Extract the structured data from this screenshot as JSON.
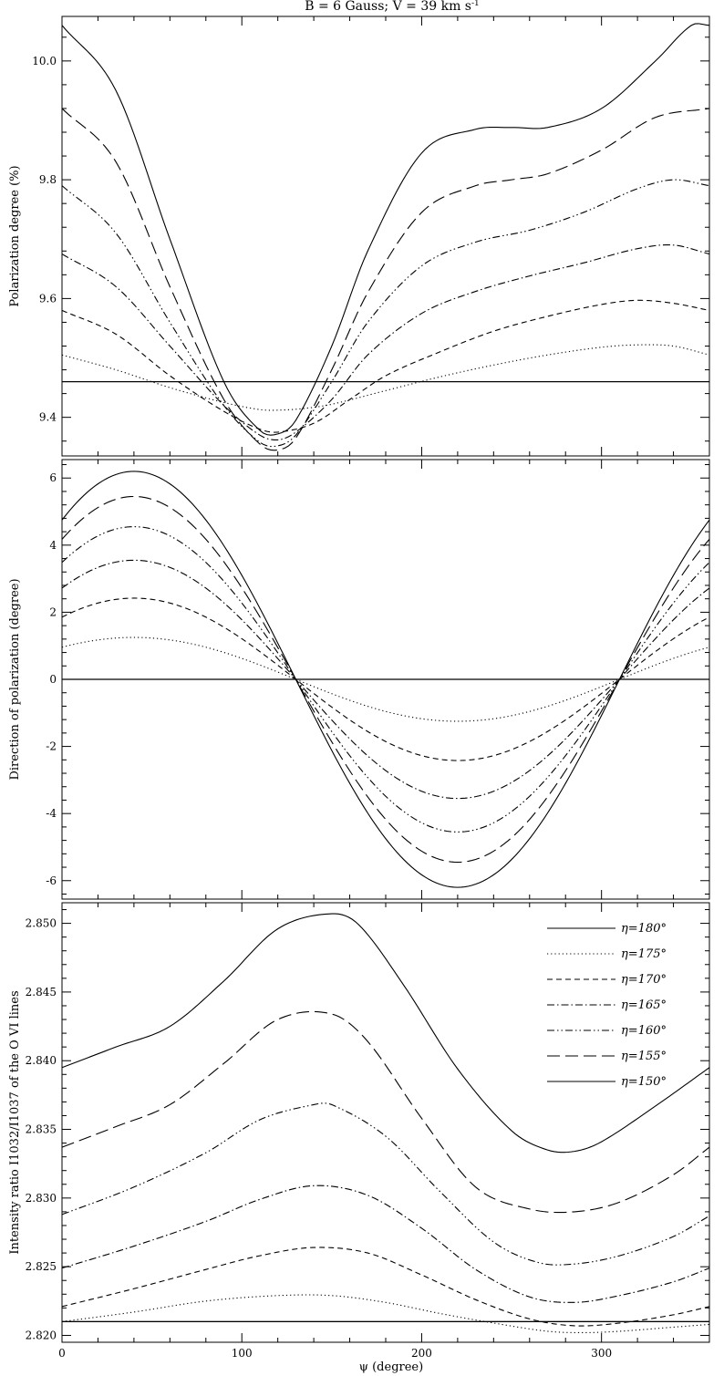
{
  "title": "B = 6 Gauss; V = 39 km s",
  "title_superscript": "-1",
  "xlabel": "ψ (degree)",
  "chart_data": [
    {
      "type": "line",
      "ylabel": "Polarization degree (%)",
      "xlim": [
        0,
        360
      ],
      "ylim": [
        9.335,
        10.075
      ],
      "yticks": [
        9.4,
        9.6,
        9.8,
        10.0
      ],
      "ytick_labels": [
        "9.4",
        "9.6",
        "9.8",
        "10.0"
      ],
      "xticks": [
        0,
        100,
        200,
        300
      ],
      "reference_line": 9.46,
      "series": [
        {
          "eta": 180,
          "style": "solid",
          "x": [
            0,
            30,
            60,
            90,
            100,
            110,
            120,
            130,
            150,
            180,
            210,
            240,
            270,
            300,
            330,
            360
          ],
          "y": [
            9.46,
            9.46,
            9.46,
            9.46,
            9.46,
            9.46,
            9.46,
            9.46,
            9.46,
            9.46,
            9.46,
            9.46,
            9.46,
            9.46,
            9.46,
            9.46
          ]
        },
        {
          "eta": 175,
          "style": "dotted",
          "x": [
            0,
            30,
            60,
            90,
            110,
            120,
            135,
            150,
            180,
            210,
            240,
            270,
            300,
            320,
            340,
            360
          ],
          "y": [
            9.505,
            9.48,
            9.45,
            9.425,
            9.413,
            9.412,
            9.415,
            9.422,
            9.445,
            9.468,
            9.488,
            9.505,
            9.518,
            9.522,
            9.52,
            9.505
          ]
        },
        {
          "eta": 170,
          "style": "dashed",
          "x": [
            0,
            30,
            60,
            90,
            110,
            120,
            140,
            160,
            180,
            210,
            240,
            270,
            300,
            320,
            340,
            360
          ],
          "y": [
            9.58,
            9.54,
            9.47,
            9.41,
            9.38,
            9.375,
            9.39,
            9.43,
            9.47,
            9.51,
            9.545,
            9.57,
            9.59,
            9.597,
            9.592,
            9.58
          ]
        },
        {
          "eta": 165,
          "style": "dashdot",
          "x": [
            0,
            30,
            60,
            90,
            110,
            120,
            130,
            150,
            170,
            200,
            230,
            260,
            290,
            320,
            340,
            360
          ],
          "y": [
            9.675,
            9.62,
            9.52,
            9.42,
            9.37,
            9.362,
            9.375,
            9.43,
            9.505,
            9.575,
            9.612,
            9.638,
            9.66,
            9.684,
            9.69,
            9.675
          ]
        },
        {
          "eta": 160,
          "style": "dashdotdot",
          "x": [
            0,
            30,
            60,
            90,
            110,
            120,
            130,
            150,
            170,
            200,
            230,
            260,
            290,
            320,
            340,
            360
          ],
          "y": [
            9.79,
            9.71,
            9.56,
            9.42,
            9.358,
            9.352,
            9.37,
            9.46,
            9.56,
            9.655,
            9.695,
            9.715,
            9.745,
            9.785,
            9.8,
            9.79
          ]
        },
        {
          "eta": 155,
          "style": "longdash",
          "x": [
            0,
            30,
            60,
            90,
            110,
            120,
            130,
            150,
            170,
            200,
            230,
            250,
            270,
            300,
            330,
            360
          ],
          "y": [
            9.92,
            9.83,
            9.62,
            9.43,
            9.355,
            9.345,
            9.365,
            9.48,
            9.61,
            9.745,
            9.79,
            9.8,
            9.81,
            9.85,
            9.905,
            9.92
          ]
        },
        {
          "eta": 150,
          "style": "solid",
          "x": [
            0,
            30,
            60,
            90,
            110,
            120,
            130,
            150,
            170,
            200,
            230,
            250,
            270,
            300,
            330,
            350,
            360
          ],
          "y": [
            10.06,
            9.95,
            9.7,
            9.46,
            9.378,
            9.372,
            9.395,
            9.52,
            9.68,
            9.845,
            9.885,
            9.888,
            9.888,
            9.92,
            10.0,
            10.06,
            10.06
          ]
        }
      ]
    },
    {
      "type": "line",
      "ylabel": "Direction of polarization (degree)",
      "xlim": [
        0,
        360
      ],
      "ylim": [
        -6.55,
        6.55
      ],
      "yticks": [
        -6,
        -4,
        -2,
        0,
        2,
        4,
        6
      ],
      "ytick_labels": [
        "-6",
        "-4",
        "-2",
        "0",
        "2",
        "4",
        "6"
      ],
      "xticks": [
        0,
        100,
        200,
        300
      ],
      "reference_line": 0,
      "amplitudes": [
        {
          "eta": 180,
          "style": "solid",
          "amplitude": 0
        },
        {
          "eta": 175,
          "style": "dotted",
          "amplitude": 1.25
        },
        {
          "eta": 170,
          "style": "dashed",
          "amplitude": 2.42
        },
        {
          "eta": 165,
          "style": "dashdot",
          "amplitude": 3.55
        },
        {
          "eta": 160,
          "style": "dashdotdot",
          "amplitude": 4.55
        },
        {
          "eta": 155,
          "style": "longdash",
          "amplitude": 5.45
        },
        {
          "eta": 150,
          "style": "solid",
          "amplitude": 6.2
        }
      ],
      "peak_x": 40,
      "trough_x": 220,
      "zero_crossings": [
        130,
        310
      ]
    },
    {
      "type": "line",
      "ylabel": "Intensity ratio I1032/I1037 of the O VI lines",
      "xlim": [
        0,
        360
      ],
      "ylim": [
        2.8195,
        2.8515
      ],
      "yticks": [
        2.82,
        2.825,
        2.83,
        2.835,
        2.84,
        2.845,
        2.85
      ],
      "ytick_labels": [
        "2.820",
        "2.825",
        "2.830",
        "2.835",
        "2.840",
        "2.845",
        "2.850"
      ],
      "xticks": [
        0,
        100,
        200,
        300
      ],
      "xtick_labels": [
        "0",
        "100",
        "200",
        "300"
      ],
      "reference_line": 2.821,
      "series": [
        {
          "eta": 180,
          "style": "solid",
          "x": [
            0,
            90,
            180,
            270,
            360
          ],
          "y": [
            2.821,
            2.821,
            2.821,
            2.821,
            2.821
          ]
        },
        {
          "eta": 175,
          "style": "dotted",
          "x": [
            0,
            40,
            80,
            120,
            150,
            180,
            210,
            240,
            270,
            290,
            310,
            340,
            360
          ],
          "y": [
            2.821,
            2.8217,
            2.8225,
            2.8229,
            2.8229,
            2.8224,
            2.8216,
            2.8209,
            2.8203,
            2.8202,
            2.8203,
            2.8206,
            2.8208
          ]
        },
        {
          "eta": 170,
          "style": "dashed",
          "x": [
            0,
            40,
            80,
            110,
            140,
            170,
            200,
            230,
            260,
            285,
            310,
            340,
            360
          ],
          "y": [
            2.8221,
            2.8234,
            2.8248,
            2.8258,
            2.8264,
            2.826,
            2.8244,
            2.8226,
            2.8212,
            2.8207,
            2.8209,
            2.8215,
            2.8221
          ]
        },
        {
          "eta": 165,
          "style": "dashdot",
          "x": [
            0,
            40,
            80,
            110,
            140,
            170,
            200,
            230,
            260,
            285,
            310,
            340,
            360
          ],
          "y": [
            2.8249,
            2.8265,
            2.8283,
            2.8299,
            2.8309,
            2.8302,
            2.8278,
            2.8248,
            2.8228,
            2.8224,
            2.8229,
            2.8239,
            2.8249
          ]
        },
        {
          "eta": 160,
          "style": "dashdotdot",
          "x": [
            0,
            40,
            80,
            110,
            140,
            150,
            180,
            210,
            240,
            265,
            285,
            310,
            340,
            360
          ],
          "y": [
            2.8288,
            2.8308,
            2.8333,
            2.8357,
            2.8368,
            2.8368,
            2.8345,
            2.8305,
            2.8268,
            2.8253,
            2.8252,
            2.8258,
            2.8272,
            2.8287
          ]
        },
        {
          "eta": 155,
          "style": "longdash",
          "x": [
            0,
            30,
            60,
            90,
            120,
            150,
            170,
            200,
            230,
            260,
            285,
            310,
            340,
            360
          ],
          "y": [
            2.8337,
            2.8352,
            2.8368,
            2.8398,
            2.843,
            2.8434,
            2.8414,
            2.8358,
            2.8308,
            2.8292,
            2.829,
            2.8297,
            2.8317,
            2.8337
          ]
        },
        {
          "eta": 150,
          "style": "solid",
          "x": [
            0,
            30,
            60,
            90,
            120,
            150,
            165,
            190,
            220,
            250,
            270,
            285,
            300,
            330,
            360
          ],
          "y": [
            2.8395,
            2.841,
            2.8425,
            2.8458,
            2.8496,
            2.8507,
            2.8499,
            2.8455,
            2.8394,
            2.8349,
            2.8335,
            2.8334,
            2.8341,
            2.8367,
            2.8395
          ]
        }
      ]
    }
  ],
  "legend": {
    "placement": "top-right",
    "items": [
      {
        "label": "η=180°",
        "style": "solid"
      },
      {
        "label": "η=175°",
        "style": "dotted"
      },
      {
        "label": "η=170°",
        "style": "dashed"
      },
      {
        "label": "η=165°",
        "style": "dashdot"
      },
      {
        "label": "η=160°",
        "style": "dashdotdot"
      },
      {
        "label": "η=155°",
        "style": "longdash"
      },
      {
        "label": "η=150°",
        "style": "solid"
      }
    ]
  },
  "line_color": "#000000"
}
